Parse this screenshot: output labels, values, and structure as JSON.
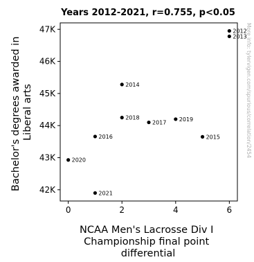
{
  "chart_data": {
    "type": "scatter",
    "title": "Years 2012-2021, r=0.755, p<0.05",
    "xlabel": [
      "NCAA Men's Lacrosse Div I",
      "Championship final point",
      "differential"
    ],
    "ylabel": [
      "Bachelor's degrees awarded in",
      "Liberal arts"
    ],
    "xlim": [
      -0.3,
      6.3
    ],
    "ylim": [
      41650,
      47200
    ],
    "xticks": [
      0,
      2,
      4,
      6
    ],
    "xtick_labels": [
      "0",
      "2",
      "4",
      "6"
    ],
    "yticks": [
      42000,
      43000,
      44000,
      45000,
      46000,
      47000
    ],
    "ytick_labels": [
      "42K",
      "43K",
      "44K",
      "45K",
      "46K",
      "47K"
    ],
    "grid": false,
    "legend": "none",
    "point_color": "#000000",
    "points": [
      {
        "label": "2012",
        "x": 6,
        "y": 46950
      },
      {
        "label": "2013",
        "x": 6,
        "y": 46780
      },
      {
        "label": "2014",
        "x": 2,
        "y": 45280
      },
      {
        "label": "2015",
        "x": 5,
        "y": 43650
      },
      {
        "label": "2016",
        "x": 1,
        "y": 43660
      },
      {
        "label": "2017",
        "x": 3,
        "y": 44100
      },
      {
        "label": "2018",
        "x": 2,
        "y": 44250
      },
      {
        "label": "2019",
        "x": 4,
        "y": 44200
      },
      {
        "label": "2020",
        "x": 0,
        "y": 42930
      },
      {
        "label": "2021",
        "x": 1,
        "y": 41900
      }
    ]
  },
  "watermark": "More info: tylervigen.com/spurious/correlation/2454"
}
